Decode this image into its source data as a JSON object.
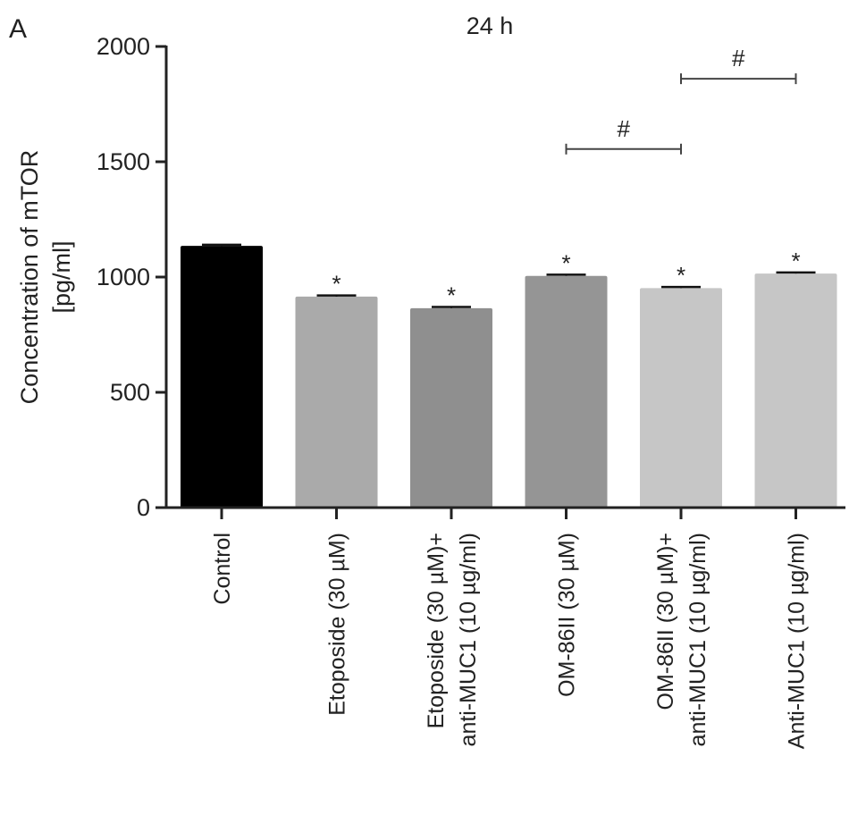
{
  "panel_label": "A",
  "chart_data": {
    "type": "bar",
    "title": "24 h",
    "ylabel_lines": [
      "Concentration of mTOR",
      "[pg/ml]"
    ],
    "xlabel": "",
    "ylim": [
      0,
      2000
    ],
    "yticks": [
      0,
      500,
      1000,
      1500,
      2000
    ],
    "grid": false,
    "legend": "none",
    "categories": [
      [
        "Control"
      ],
      [
        "Etoposide (30 µM)"
      ],
      [
        "Etoposide (30 µM)+",
        "anti-MUC1 (10 µg/ml)"
      ],
      [
        "OM-86II (30 µM)"
      ],
      [
        "OM-86II (30 µM)+",
        "anti-MUC1 (10 µg/ml)"
      ],
      [
        "Anti-MUC1 (10 µg/ml)"
      ]
    ],
    "values": [
      1135,
      915,
      865,
      1005,
      952,
      1015
    ],
    "errors": [
      5,
      5,
      5,
      5,
      5,
      5
    ],
    "colors": [
      "#000000",
      "#aaaaaa",
      "#8f8f8f",
      "#959595",
      "#c6c6c6",
      "#c6c6c6"
    ],
    "significance": [
      "",
      "*",
      "*",
      "*",
      "*",
      "*"
    ],
    "comparisons": [
      {
        "from": 3,
        "to": 4,
        "y": 1555,
        "symbol": "#"
      },
      {
        "from": 4,
        "to": 5,
        "y": 1860,
        "symbol": "#"
      }
    ]
  }
}
